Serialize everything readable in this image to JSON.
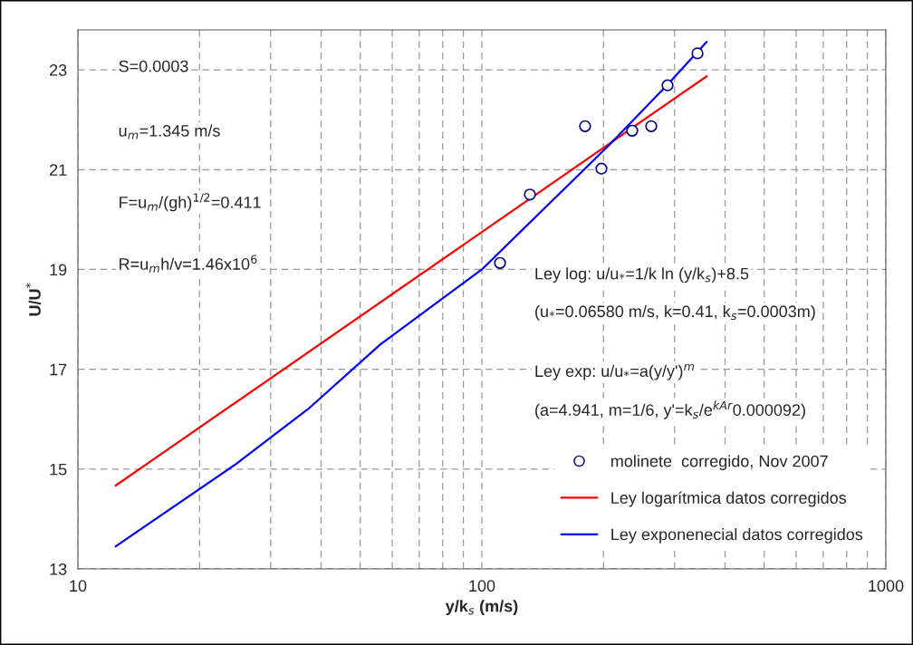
{
  "chart_data": {
    "type": "line",
    "xlabel": "y/k$_{s}$ (m/s)",
    "ylabel": "U/U$^{*}$",
    "log": "x",
    "xlim": [
      10,
      1000
    ],
    "ylim": [
      13,
      23.8
    ],
    "xticks": [
      10,
      {
        "value": 20,
        "label": null
      },
      {
        "value": 30,
        "label": null
      },
      {
        "value": 40,
        "label": null
      },
      {
        "value": 50,
        "label": null
      },
      {
        "value": 60,
        "label": null
      },
      {
        "value": 70,
        "label": null
      },
      {
        "value": 80,
        "label": null
      },
      {
        "value": 90,
        "label": null
      },
      100,
      {
        "value": 200,
        "label": null
      },
      {
        "value": 300,
        "label": null
      },
      {
        "value": 400,
        "label": null
      },
      {
        "value": 500,
        "label": null
      },
      {
        "value": 600,
        "label": null
      },
      {
        "value": 700,
        "label": null
      },
      {
        "value": 800,
        "label": null
      },
      {
        "value": 900,
        "label": null
      },
      1000
    ],
    "yticks": [
      13,
      15,
      17,
      19,
      21,
      23
    ],
    "grid": true,
    "legend": "bottom right",
    "series": [
      {
        "name": "molinete  corregido, Nov 2007",
        "type": "scatter",
        "marker": "circle",
        "color": "#000080",
        "x": [
          110.9,
          131.5,
          180.1,
          197.7,
          235.6,
          262.6,
          288.2,
          341.8
        ],
        "values": [
          19.13,
          20.5,
          21.87,
          21.02,
          21.78,
          21.87,
          22.69,
          23.33
        ]
      },
      {
        "name": "Ley logarítmica datos corregidos",
        "color": "#ff0000",
        "x": [
          12.4,
          100,
          360
        ],
        "values": [
          14.67,
          19.75,
          22.87
        ]
      },
      {
        "name": "Ley exponenecial datos corregidos",
        "color": "#0000ff",
        "x": [
          12.4,
          24.6,
          37.1,
          56.1,
          100,
          207,
          288,
          360
        ],
        "values": [
          13.45,
          15.1,
          16.2,
          17.5,
          19.0,
          21.5,
          22.7,
          23.56
        ]
      }
    ],
    "annotations": [
      "S=0.0003",
      "u$_{m}$=1.345 m/s",
      "F=u$_{m}$/(gh)$^{1/2}$=0.411",
      "R=u$_{m}$h/v=1.46x10$^{6}$",
      "Ley log: u/u$_{*}$=1/k ln (y/k$_{s}$)+8.5",
      "(u$_{*}$=0.06580 m/s, k=0.41, k$_{s}$=0.0003m)",
      "Ley exp: u/u$_{*}$=a(y/y')$^{m}$",
      "(a=4.941, m=1/6, y'=k$_{s}$/e$^{kAr}$0.000092)"
    ]
  }
}
